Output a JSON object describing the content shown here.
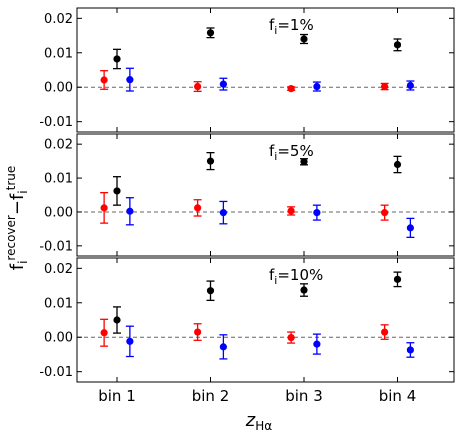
{
  "chart_data": {
    "type": "scatter",
    "layout": "3 vertically stacked panels sharing x axis",
    "categories": [
      "bin 1",
      "bin 2",
      "bin 3",
      "bin 4"
    ],
    "xlabel": "z",
    "xlabel_sub": "Hα",
    "ylabel": "f",
    "ylabel_sub": "i",
    "ylabel_sup": "recover",
    "ylabel_minus": "−f",
    "ylabel_sub2": "i",
    "ylabel_sup2": "true",
    "ylim": [
      -0.013,
      0.023
    ],
    "yticks": [
      -0.01,
      0.0,
      0.01,
      0.02
    ],
    "ytick_labels": [
      "-0.01",
      "0.00",
      "0.01",
      "0.02"
    ],
    "reference_line": 0.0,
    "series_colors": [
      "#000000",
      "#ff0000",
      "#0000ff"
    ],
    "panels": [
      {
        "label_base": "f",
        "label_sub": "i",
        "label_rest": "=1%",
        "series": [
          {
            "color": "#000000",
            "offset": 0.0,
            "values": [
              0.0082,
              0.0158,
              0.014,
              0.0123
            ],
            "errors": [
              0.0028,
              0.0014,
              0.0013,
              0.0017
            ]
          },
          {
            "color": "#ff0000",
            "offset": -0.28,
            "values": [
              0.0021,
              0.0002,
              -0.0004,
              0.0002
            ],
            "errors": [
              0.0027,
              0.0014,
              0.0005,
              0.0009
            ]
          },
          {
            "color": "#0000ff",
            "offset": 0.28,
            "values": [
              0.0022,
              0.0009,
              0.0002,
              0.0005
            ],
            "errors": [
              0.0033,
              0.0017,
              0.0013,
              0.0013
            ]
          }
        ]
      },
      {
        "label_base": "f",
        "label_sub": "i",
        "label_rest": "=5%",
        "series": [
          {
            "color": "#000000",
            "offset": 0.0,
            "values": [
              0.0062,
              0.015,
              0.0148,
              0.014
            ],
            "errors": [
              0.0042,
              0.0025,
              0.0009,
              0.0024
            ]
          },
          {
            "color": "#ff0000",
            "offset": -0.28,
            "values": [
              0.0012,
              0.0012,
              0.0003,
              -0.0002
            ],
            "errors": [
              0.0045,
              0.0024,
              0.0012,
              0.0022
            ]
          },
          {
            "color": "#0000ff",
            "offset": 0.28,
            "values": [
              0.0002,
              -0.0002,
              -0.0002,
              -0.0047
            ],
            "errors": [
              0.004,
              0.0033,
              0.0022,
              0.0028
            ]
          }
        ]
      },
      {
        "label_base": "f",
        "label_sub": "i",
        "label_rest": "=10%",
        "series": [
          {
            "color": "#000000",
            "offset": 0.0,
            "values": [
              0.005,
              0.0135,
              0.0137,
              0.0168
            ],
            "errors": [
              0.0038,
              0.0028,
              0.0018,
              0.0021
            ]
          },
          {
            "color": "#ff0000",
            "offset": -0.28,
            "values": [
              0.0013,
              0.0015,
              -0.0001,
              0.0015
            ],
            "errors": [
              0.0039,
              0.0024,
              0.0016,
              0.0021
            ]
          },
          {
            "color": "#0000ff",
            "offset": 0.28,
            "values": [
              -0.0012,
              -0.0028,
              -0.002,
              -0.0037
            ],
            "errors": [
              0.0044,
              0.0035,
              0.0029,
              0.0021
            ]
          }
        ]
      }
    ]
  }
}
